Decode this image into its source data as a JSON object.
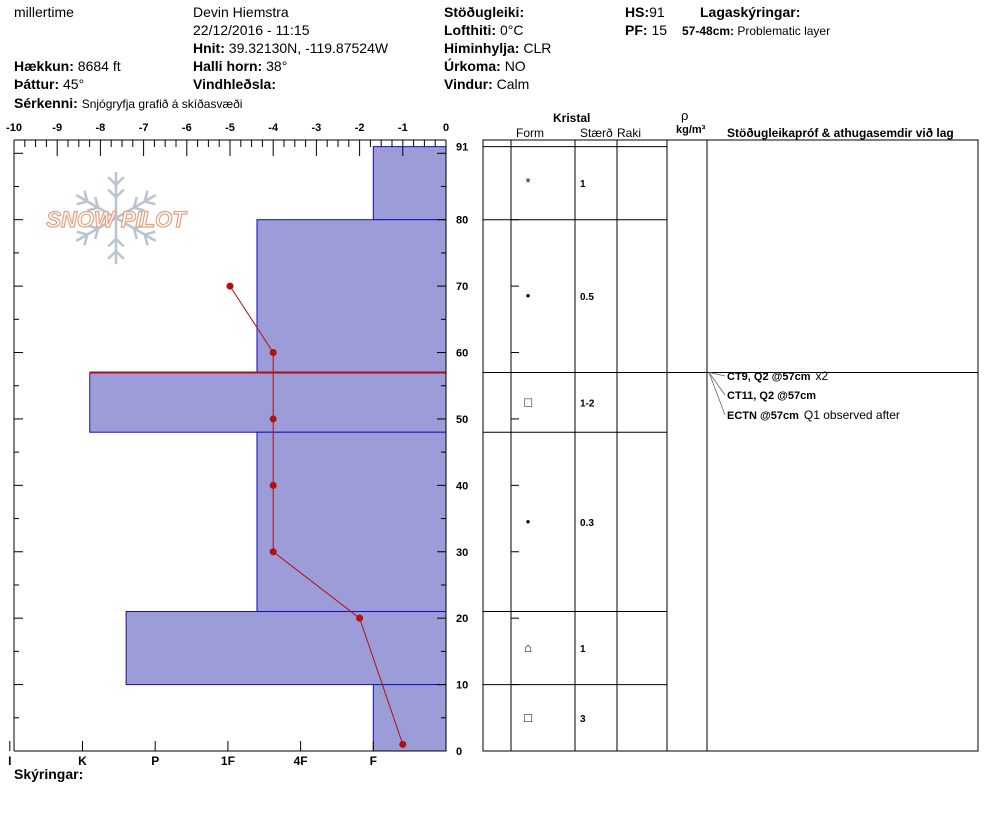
{
  "header": {
    "username": "millertime",
    "observer": "Devin Hiemstra",
    "datetime": "22/12/2016 - 11:15",
    "hnit_label": "Hnit:",
    "hnit_value": "39.32130N, -119.87524W",
    "halli_label": "Halli horn:",
    "halli_value": "38°",
    "vindhledsla_label": "Vindhleðsla:",
    "haekkun_label": "Hækkun:",
    "haekkun_value": "8684 ft",
    "thattur_label": "Þáttur:",
    "thattur_value": "45°",
    "serkenni_label": "Sérkenni:",
    "serkenni_value": "Snjógryfja grafið á skíðasvæði",
    "stodugleiki_label": "Stöðugleiki:",
    "lofthiti_label": "Lofthiti:",
    "lofthiti_value": "0°C",
    "himinhylja_label": "Himinhylja:",
    "himinhylja_value": "CLR",
    "urkoma_label": "Úrkoma:",
    "urkoma_value": "NO",
    "vindur_label": "Vindur:",
    "vindur_value": "Calm",
    "hs_label": "HS:",
    "hs_value": "91",
    "pf_label": "PF:",
    "pf_value": "15",
    "lagaskyringar_label": "Lagaskýringar:",
    "problem_range": "57-48cm:",
    "problem_text": "Problematic layer"
  },
  "logo": {
    "text": "SNOW PILOT"
  },
  "columns": {
    "kristal": "Kristal",
    "form": "Form",
    "staerd": "Stærð",
    "raki": "Raki",
    "rho": "ρ",
    "density_unit": "kg/m³",
    "tests_header": "Stöðugleikapróf & athugasemdir við lag"
  },
  "footer": {
    "skyringar_label": "Skýringar:"
  },
  "colors": {
    "hardness_fill": "#9c9cd8",
    "hardness_stroke": "#1010c0",
    "temp_line": "#b01010",
    "problem_line": "#b01010"
  },
  "chart_data": {
    "type": "bar",
    "title": "",
    "temperature_axis": {
      "ticks": [
        -10,
        -9,
        -8,
        -7,
        -6,
        -5,
        -4,
        -3,
        -2,
        -1,
        0
      ],
      "labels": [
        "-10",
        "-9",
        "-8",
        "-7",
        "-6",
        "-5",
        "-4",
        "-3",
        "-2",
        "-1",
        "0"
      ],
      "range": [
        -10,
        0
      ]
    },
    "height_axis": {
      "range": [
        0,
        92
      ],
      "tick_labels": [
        "0",
        "10",
        "20",
        "30",
        "40",
        "50",
        "60",
        "70",
        "80",
        "91"
      ],
      "tick_values": [
        0,
        10,
        20,
        30,
        40,
        50,
        60,
        70,
        80,
        91
      ]
    },
    "hardness_axis": {
      "labels": [
        "I",
        "K",
        "P",
        "1F",
        "4F",
        "F"
      ],
      "values": [
        6,
        5,
        4,
        3,
        2,
        1
      ]
    },
    "layers": [
      {
        "top": 91,
        "bottom": 80,
        "hardness": 1,
        "form": "*",
        "size": "1"
      },
      {
        "top": 80,
        "bottom": 57,
        "hardness": 2.6,
        "form": "•",
        "size": "0.5"
      },
      {
        "top": 57,
        "bottom": 48,
        "hardness": 4.9,
        "form": "□",
        "size": "1-2"
      },
      {
        "top": 48,
        "bottom": 21,
        "hardness": 2.6,
        "form": "•",
        "size": "0.3"
      },
      {
        "top": 21,
        "bottom": 10,
        "hardness": 4.4,
        "form": "⌂",
        "size": "1"
      },
      {
        "top": 10,
        "bottom": 0,
        "hardness": 1,
        "form": "□",
        "size": "3"
      }
    ],
    "temperature_profile": [
      {
        "height": 70,
        "temp": -5
      },
      {
        "height": 60,
        "temp": -4
      },
      {
        "height": 50,
        "temp": -4
      },
      {
        "height": 40,
        "temp": -4
      },
      {
        "height": 30,
        "temp": -4
      },
      {
        "height": 20,
        "temp": -2
      },
      {
        "height": 1,
        "temp": -1
      }
    ],
    "problem_layer_height": 57,
    "tests": [
      {
        "label": "CT9, Q2 @57cm",
        "note": "x2"
      },
      {
        "label": "CT11, Q2 @57cm",
        "note": ""
      },
      {
        "label": "ECTN @57cm",
        "note": "Q1 observed after"
      }
    ]
  }
}
